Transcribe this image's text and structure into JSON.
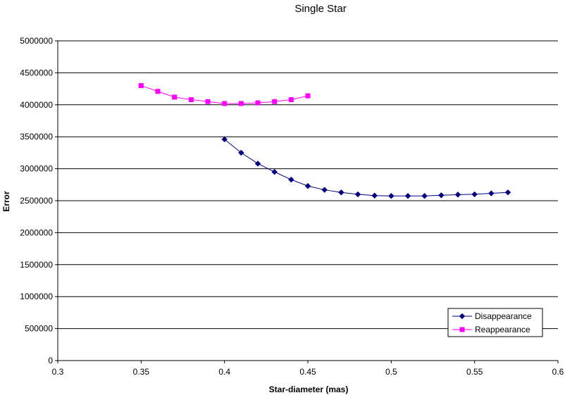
{
  "chart_data": {
    "type": "line",
    "title": "Single Star",
    "xlabel": "Star-diameter (mas)",
    "ylabel": "Error",
    "xlim": [
      0.3,
      0.6
    ],
    "ylim": [
      0,
      5000000
    ],
    "x_ticks": [
      "0.3",
      "0.35",
      "0.4",
      "0.45",
      "0.5",
      "0.55",
      "0.6"
    ],
    "x_tick_values": [
      0.3,
      0.35,
      0.4,
      0.45,
      0.5,
      0.55,
      0.6
    ],
    "y_ticks": [
      "0",
      "500000",
      "1000000",
      "1500000",
      "2000000",
      "2500000",
      "3000000",
      "3500000",
      "4000000",
      "4500000",
      "5000000"
    ],
    "y_tick_values": [
      0,
      500000,
      1000000,
      1500000,
      2000000,
      2500000,
      3000000,
      3500000,
      4000000,
      4500000,
      5000000
    ],
    "grid": "horizontal",
    "legend_position": "bottom-right",
    "series": [
      {
        "name": "Disappearance",
        "color": "#000080",
        "marker": "diamond",
        "x": [
          0.4,
          0.41,
          0.42,
          0.43,
          0.44,
          0.45,
          0.46,
          0.47,
          0.48,
          0.49,
          0.5,
          0.51,
          0.52,
          0.53,
          0.54,
          0.55,
          0.56,
          0.57
        ],
        "values": [
          3460000,
          3250000,
          3080000,
          2950000,
          2830000,
          2730000,
          2670000,
          2630000,
          2600000,
          2580000,
          2575000,
          2575000,
          2575000,
          2585000,
          2595000,
          2600000,
          2615000,
          2630000
        ]
      },
      {
        "name": "Reappearance",
        "color": "#ff00ff",
        "marker": "square",
        "x": [
          0.35,
          0.36,
          0.37,
          0.38,
          0.39,
          0.4,
          0.41,
          0.42,
          0.43,
          0.44,
          0.45
        ],
        "values": [
          4300000,
          4210000,
          4120000,
          4080000,
          4050000,
          4020000,
          4020000,
          4030000,
          4050000,
          4080000,
          4140000
        ]
      }
    ]
  }
}
